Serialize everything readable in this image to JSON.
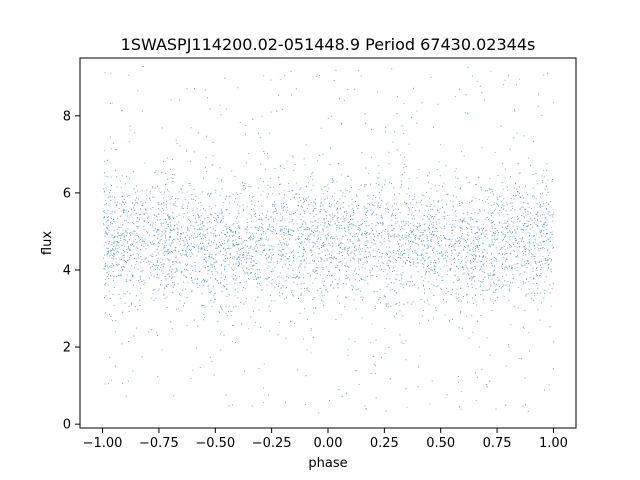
{
  "chart_data": {
    "type": "scatter",
    "title": "1SWASPJ114200.02-051448.9 Period 67430.02344s",
    "xlabel": "phase",
    "ylabel": "flux",
    "xlim": [
      -1.1,
      1.1
    ],
    "ylim": [
      -0.1,
      9.5
    ],
    "xticks": [
      -1.0,
      -0.75,
      -0.5,
      -0.25,
      0.0,
      0.25,
      0.5,
      0.75,
      1.0
    ],
    "xtick_labels": [
      "−1.00",
      "−0.75",
      "−0.50",
      "−0.25",
      "0.00",
      "0.25",
      "0.50",
      "0.75",
      "1.00"
    ],
    "yticks": [
      0,
      2,
      4,
      6,
      8
    ],
    "ytick_labels": [
      "0",
      "2",
      "4",
      "6",
      "8"
    ],
    "grid": false,
    "legend": "none",
    "marker_color": "#1f77b4",
    "series_summary": {
      "x_range": [
        -1.0,
        1.0
      ],
      "y_range": [
        0.3,
        9.3
      ],
      "dense_band_center": 4.8,
      "dense_band_halfwidth": 1.1,
      "approx_point_count": 40000,
      "mirrored_phase": true,
      "shallow_dips_near_phase": [
        -0.45,
        0.6
      ]
    }
  }
}
